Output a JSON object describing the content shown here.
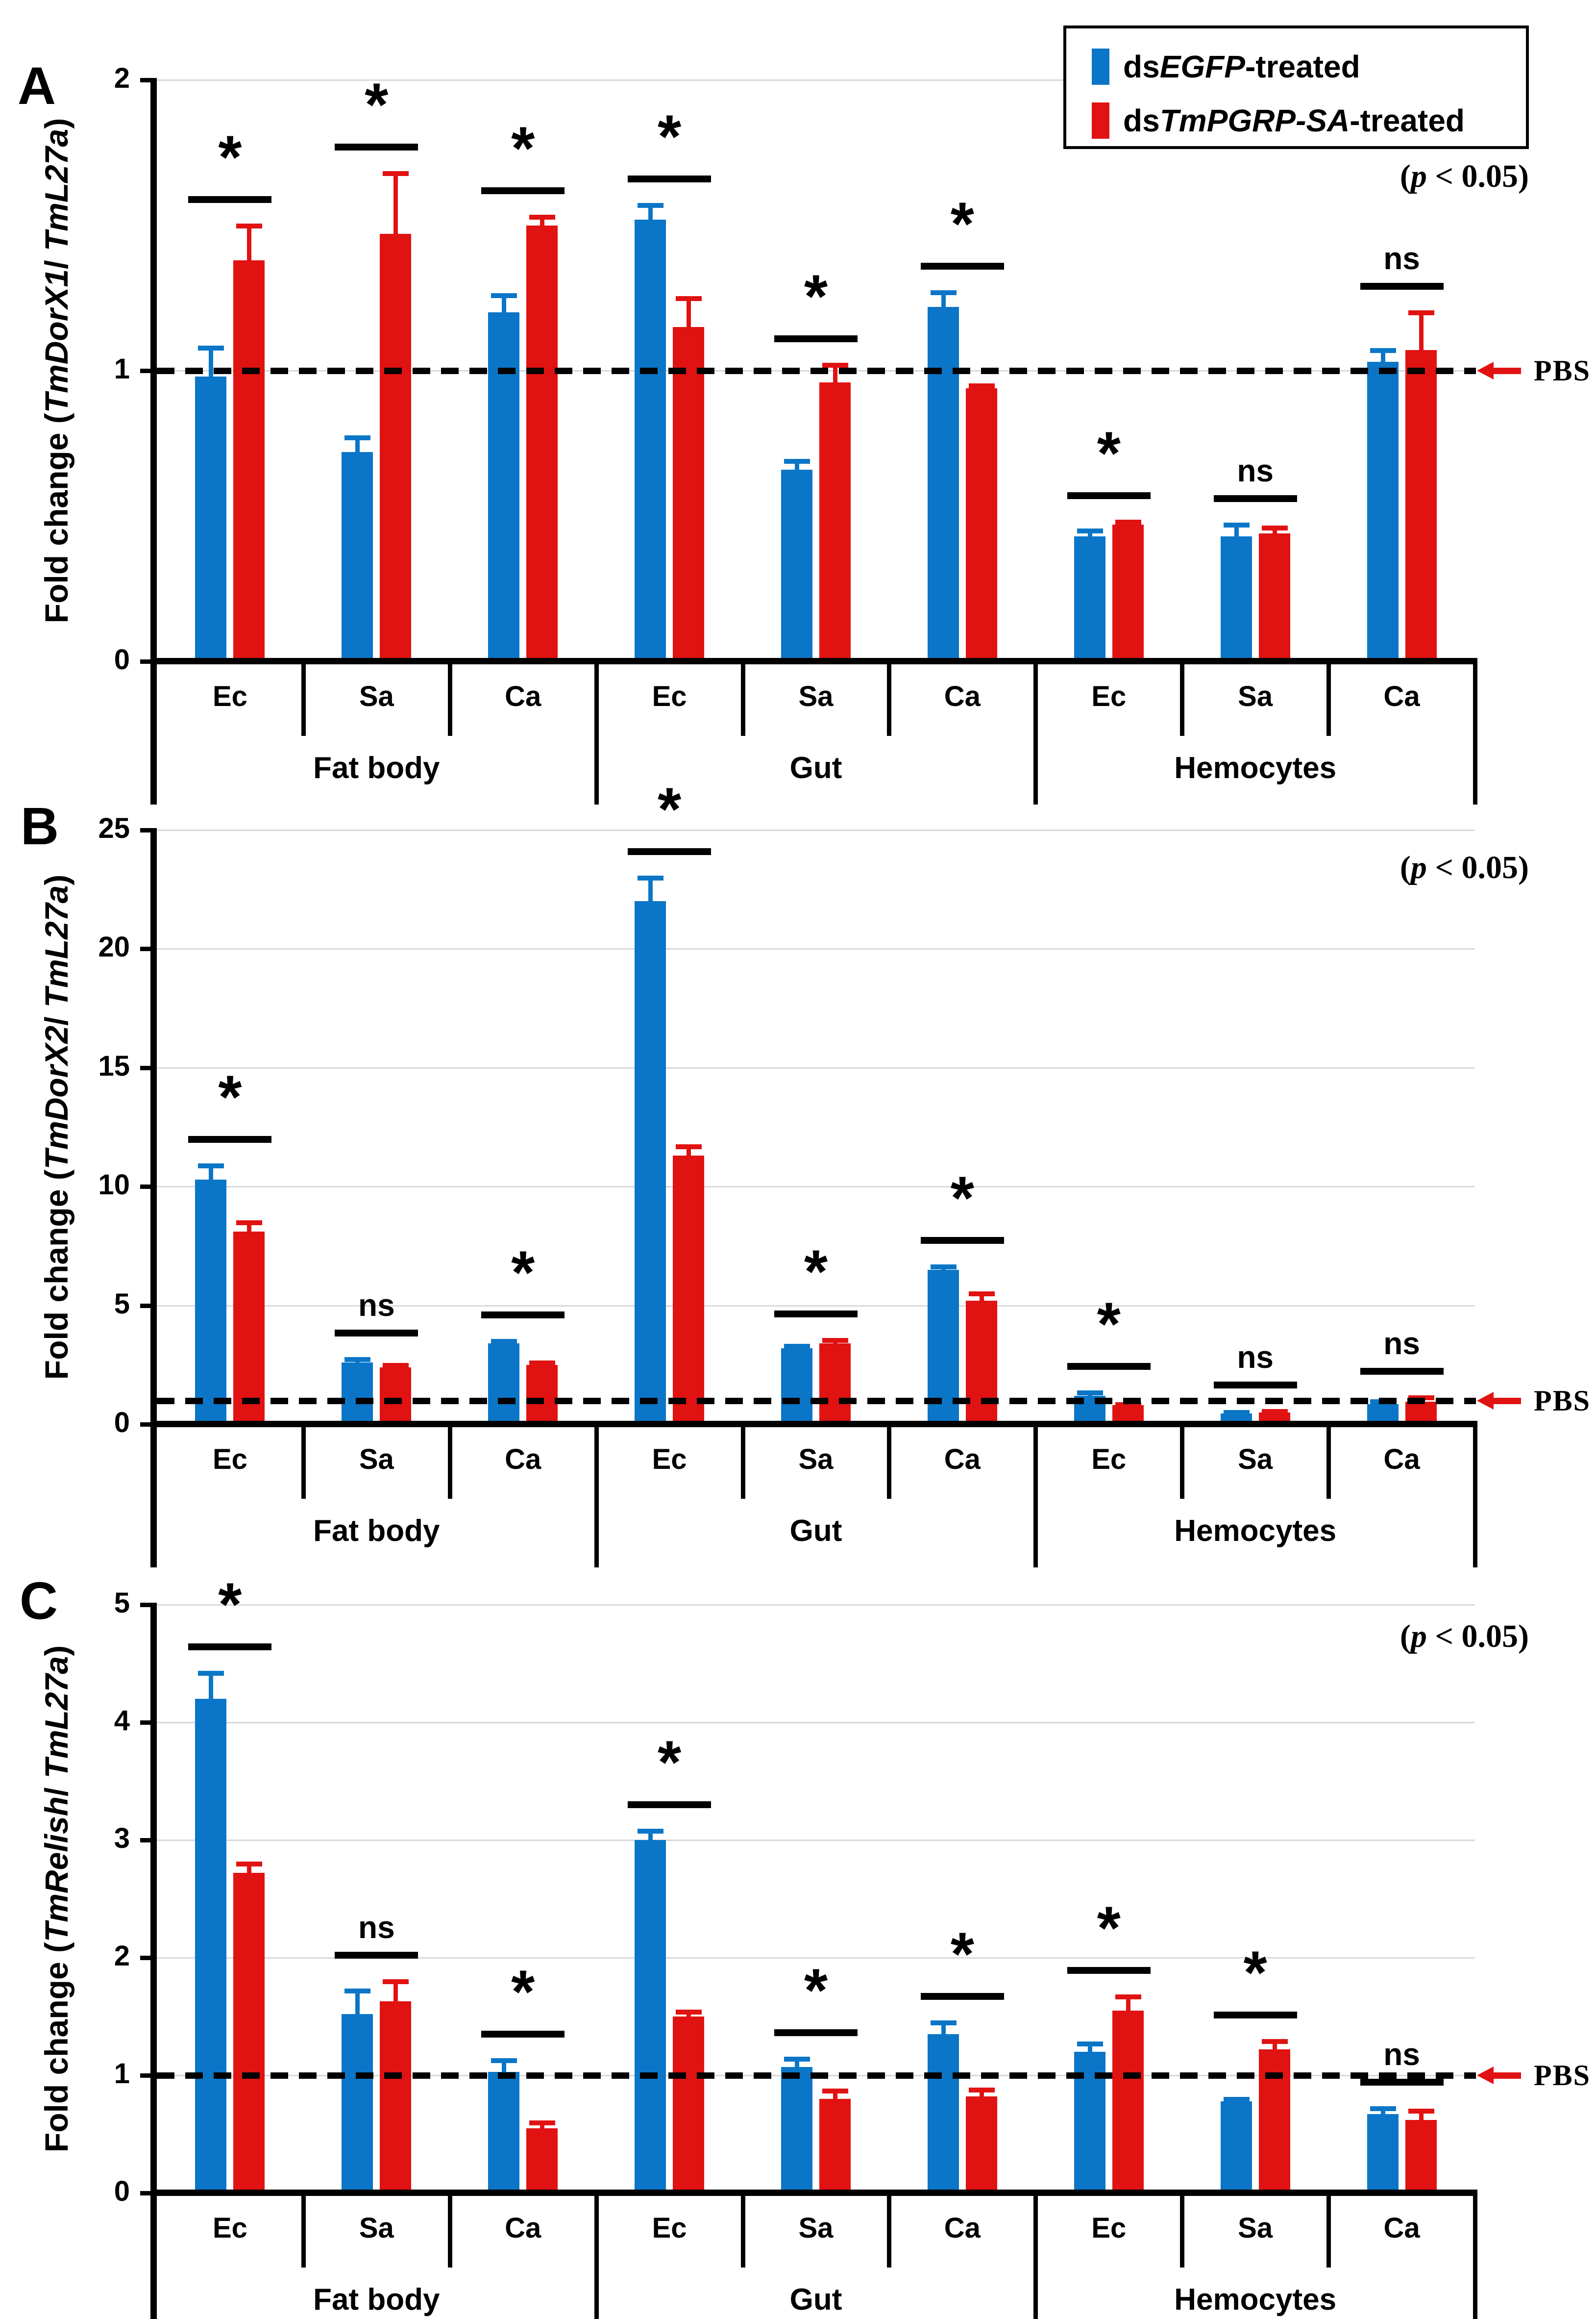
{
  "colors": {
    "blue": "#0b76c7",
    "red": "#e11212",
    "grid": "#d9d9d9",
    "axis": "#000000",
    "pbs_arrow": "#e11212"
  },
  "legend": {
    "position": "top-right",
    "items": [
      {
        "prefix": "ds",
        "gene": "EGFP",
        "suffix": "-treated",
        "swatch": "blue"
      },
      {
        "prefix": "ds",
        "gene": "TmPGRP-SA",
        "suffix": "-treated",
        "swatch": "red"
      }
    ]
  },
  "p_note": {
    "open": "(",
    "p": "p",
    "rest": " < 0.05)"
  },
  "pbs_label": "PBS",
  "chart_data": [
    {
      "type": "bar",
      "panel": "A",
      "ylabel": {
        "prefix": "Fold change (",
        "gene": "TmDorX1",
        "slash": "/ ",
        "ref": "TmL27a",
        "close": ")"
      },
      "ylim": [
        0,
        2
      ],
      "yticks": [
        0,
        1,
        2
      ],
      "grid": true,
      "baseline_line": 1,
      "groups": [
        "Ec",
        "Sa",
        "Ca",
        "Ec",
        "Sa",
        "Ca",
        "Ec",
        "Sa",
        "Ca"
      ],
      "tissues": [
        {
          "label": "Fat body",
          "span": [
            0,
            2
          ]
        },
        {
          "label": "Gut",
          "span": [
            3,
            5
          ]
        },
        {
          "label": "Hemocytes",
          "span": [
            6,
            8
          ]
        }
      ],
      "series": [
        {
          "name": "dsEGFP-treated",
          "color": "blue",
          "values": [
            0.98,
            0.72,
            1.2,
            1.52,
            0.66,
            1.22,
            0.43,
            0.43,
            1.03
          ],
          "errors": [
            0.1,
            0.05,
            0.06,
            0.05,
            0.03,
            0.05,
            0.02,
            0.04,
            0.04
          ]
        },
        {
          "name": "dsTmPGRP-SA-treated",
          "color": "red",
          "values": [
            1.38,
            1.47,
            1.5,
            1.15,
            0.96,
            0.94,
            0.47,
            0.44,
            1.07
          ],
          "errors": [
            0.12,
            0.21,
            0.03,
            0.1,
            0.06,
            0.01,
            0.01,
            0.02,
            0.13
          ]
        }
      ],
      "significance": [
        "*",
        "*",
        "*",
        "*",
        "*",
        "*",
        "*",
        "ns",
        "ns"
      ]
    },
    {
      "type": "bar",
      "panel": "B",
      "ylabel": {
        "prefix": "Fold change (",
        "gene": "TmDorX2",
        "slash": "/ ",
        "ref": "TmL27a",
        "close": ")"
      },
      "ylim": [
        0,
        25
      ],
      "yticks": [
        0,
        5,
        10,
        15,
        20,
        25
      ],
      "grid": true,
      "baseline_line": 1,
      "groups": [
        "Ec",
        "Sa",
        "Ca",
        "Ec",
        "Sa",
        "Ca",
        "Ec",
        "Sa",
        "Ca"
      ],
      "tissues": [
        {
          "label": "Fat body",
          "span": [
            0,
            2
          ]
        },
        {
          "label": "Gut",
          "span": [
            3,
            5
          ]
        },
        {
          "label": "Hemocytes",
          "span": [
            6,
            8
          ]
        }
      ],
      "series": [
        {
          "name": "dsEGFP-treated",
          "color": "blue",
          "values": [
            10.3,
            2.6,
            3.4,
            22.0,
            3.2,
            6.5,
            1.2,
            0.45,
            0.85
          ],
          "errors": [
            0.6,
            0.15,
            0.1,
            1.0,
            0.1,
            0.15,
            0.15,
            0.06,
            0.12
          ]
        },
        {
          "name": "dsTmPGRP-SA-treated",
          "color": "red",
          "values": [
            8.1,
            2.4,
            2.5,
            11.3,
            3.4,
            5.2,
            0.8,
            0.5,
            0.95
          ],
          "errors": [
            0.4,
            0.1,
            0.1,
            0.4,
            0.15,
            0.3,
            0.05,
            0.05,
            0.18
          ]
        }
      ],
      "significance": [
        "*",
        "ns",
        "*",
        "*",
        "*",
        "*",
        "*",
        "ns",
        "ns"
      ]
    },
    {
      "type": "bar",
      "panel": "C",
      "ylabel": {
        "prefix": "Fold change (",
        "gene": "TmRelish",
        "slash": "/ ",
        "ref": "TmL27a",
        "close": ")"
      },
      "ylim": [
        0,
        5
      ],
      "yticks": [
        0,
        1,
        2,
        3,
        4,
        5
      ],
      "grid": true,
      "baseline_line": 1,
      "groups": [
        "Ec",
        "Sa",
        "Ca",
        "Ec",
        "Sa",
        "Ca",
        "Ec",
        "Sa",
        "Ca"
      ],
      "tissues": [
        {
          "label": "Fat body",
          "span": [
            0,
            2
          ]
        },
        {
          "label": "Gut",
          "span": [
            3,
            5
          ]
        },
        {
          "label": "Hemocytes",
          "span": [
            6,
            8
          ]
        }
      ],
      "series": [
        {
          "name": "dsEGFP-treated",
          "color": "blue",
          "values": [
            4.2,
            1.52,
            1.03,
            3.0,
            1.07,
            1.35,
            1.2,
            0.78,
            0.67
          ],
          "errors": [
            0.22,
            0.2,
            0.1,
            0.08,
            0.07,
            0.1,
            0.07,
            0.02,
            0.05
          ]
        },
        {
          "name": "dsTmPGRP-SA-treated",
          "color": "red",
          "values": [
            2.72,
            1.63,
            0.55,
            1.5,
            0.8,
            0.82,
            1.55,
            1.22,
            0.62
          ],
          "errors": [
            0.08,
            0.17,
            0.05,
            0.04,
            0.07,
            0.06,
            0.12,
            0.07,
            0.08
          ]
        }
      ],
      "significance": [
        "*",
        "ns",
        "*",
        "*",
        "*",
        "*",
        "*",
        "*",
        "ns"
      ]
    }
  ]
}
